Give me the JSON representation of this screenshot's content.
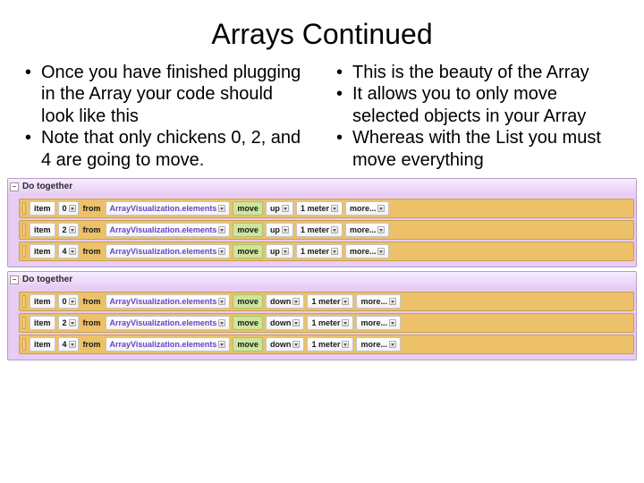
{
  "title": "Arrays Continued",
  "left_bullets": [
    "Once you have finished plugging in the Array your code should look like this",
    "Note that only chickens 0, 2, and 4 are going to move."
  ],
  "right_bullets": [
    "This is the beauty of the Array",
    "It allows you to only move selected objects in your Array",
    "Whereas with the List you must move everything"
  ],
  "colors": {
    "row_bg": "#ecc16a",
    "block_bg": "#e7ccf4",
    "action_bg": "#cde59c",
    "array_text": "#6744c2"
  },
  "blocks": [
    {
      "header": "Do together",
      "rows": [
        {
          "item_kw": "item",
          "index": "0",
          "from_kw": "from",
          "array": "ArrayVisualization.elements",
          "action": "move",
          "dir": "up",
          "dist": "1 meter",
          "more": "more..."
        },
        {
          "item_kw": "item",
          "index": "2",
          "from_kw": "from",
          "array": "ArrayVisualization.elements",
          "action": "move",
          "dir": "up",
          "dist": "1 meter",
          "more": "more..."
        },
        {
          "item_kw": "item",
          "index": "4",
          "from_kw": "from",
          "array": "ArrayVisualization.elements",
          "action": "move",
          "dir": "up",
          "dist": "1 meter",
          "more": "more..."
        }
      ]
    },
    {
      "header": "Do together",
      "rows": [
        {
          "item_kw": "item",
          "index": "0",
          "from_kw": "from",
          "array": "ArrayVisualization.elements",
          "action": "move",
          "dir": "down",
          "dist": "1 meter",
          "more": "more..."
        },
        {
          "item_kw": "item",
          "index": "2",
          "from_kw": "from",
          "array": "ArrayVisualization.elements",
          "action": "move",
          "dir": "down",
          "dist": "1 meter",
          "more": "more..."
        },
        {
          "item_kw": "item",
          "index": "4",
          "from_kw": "from",
          "array": "ArrayVisualization.elements",
          "action": "move",
          "dir": "down",
          "dist": "1 meter",
          "more": "more..."
        }
      ]
    }
  ]
}
